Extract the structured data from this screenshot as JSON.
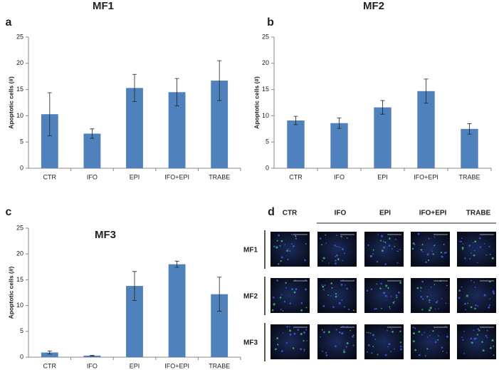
{
  "chart_data": [
    {
      "type": "bar",
      "panel": "a",
      "title": "MF1",
      "y_label": "Apoptotic cells (#)",
      "categories": [
        "CTR",
        "IFO",
        "EPI",
        "IFO+EPI",
        "TRABE"
      ],
      "values": [
        10.3,
        6.6,
        15.3,
        14.5,
        16.7
      ],
      "errors": [
        4.1,
        0.9,
        2.6,
        2.6,
        3.8
      ],
      "color": "#4f81bd",
      "ylim": [
        0,
        25
      ],
      "yticks": [
        0,
        5,
        10,
        15,
        20,
        25
      ]
    },
    {
      "type": "bar",
      "panel": "b",
      "title": "MF2",
      "y_label": "Apoptotic cells (#)",
      "categories": [
        "CTR",
        "IFO",
        "EPI",
        "IFO+EPI",
        "TRABE"
      ],
      "values": [
        9.1,
        8.6,
        11.6,
        14.7,
        7.5
      ],
      "errors": [
        0.8,
        1.0,
        1.3,
        2.3,
        1.0
      ],
      "color": "#4f81bd",
      "ylim": [
        0,
        25
      ],
      "yticks": [
        0,
        5,
        10,
        15,
        20,
        25
      ]
    },
    {
      "type": "bar",
      "panel": "c",
      "title": "MF3",
      "y_label": "Apoptotic cells (#)",
      "categories": [
        "CTR",
        "IFO",
        "EPI",
        "IFO+EPI",
        "TRABE"
      ],
      "values": [
        0.9,
        0.3,
        13.8,
        18.0,
        12.2
      ],
      "errors": [
        0.3,
        0.05,
        2.8,
        0.6,
        3.3
      ],
      "color": "#4f81bd",
      "ylim": [
        0,
        25
      ],
      "yticks": [
        0,
        5,
        10,
        15,
        20,
        25
      ]
    }
  ],
  "image_panel": {
    "panel": "d",
    "columns": [
      "CTR",
      "IFO",
      "EPI",
      "IFO+EPI",
      "TRABE"
    ],
    "rows": [
      "MF1",
      "MF2",
      "MF3"
    ]
  }
}
